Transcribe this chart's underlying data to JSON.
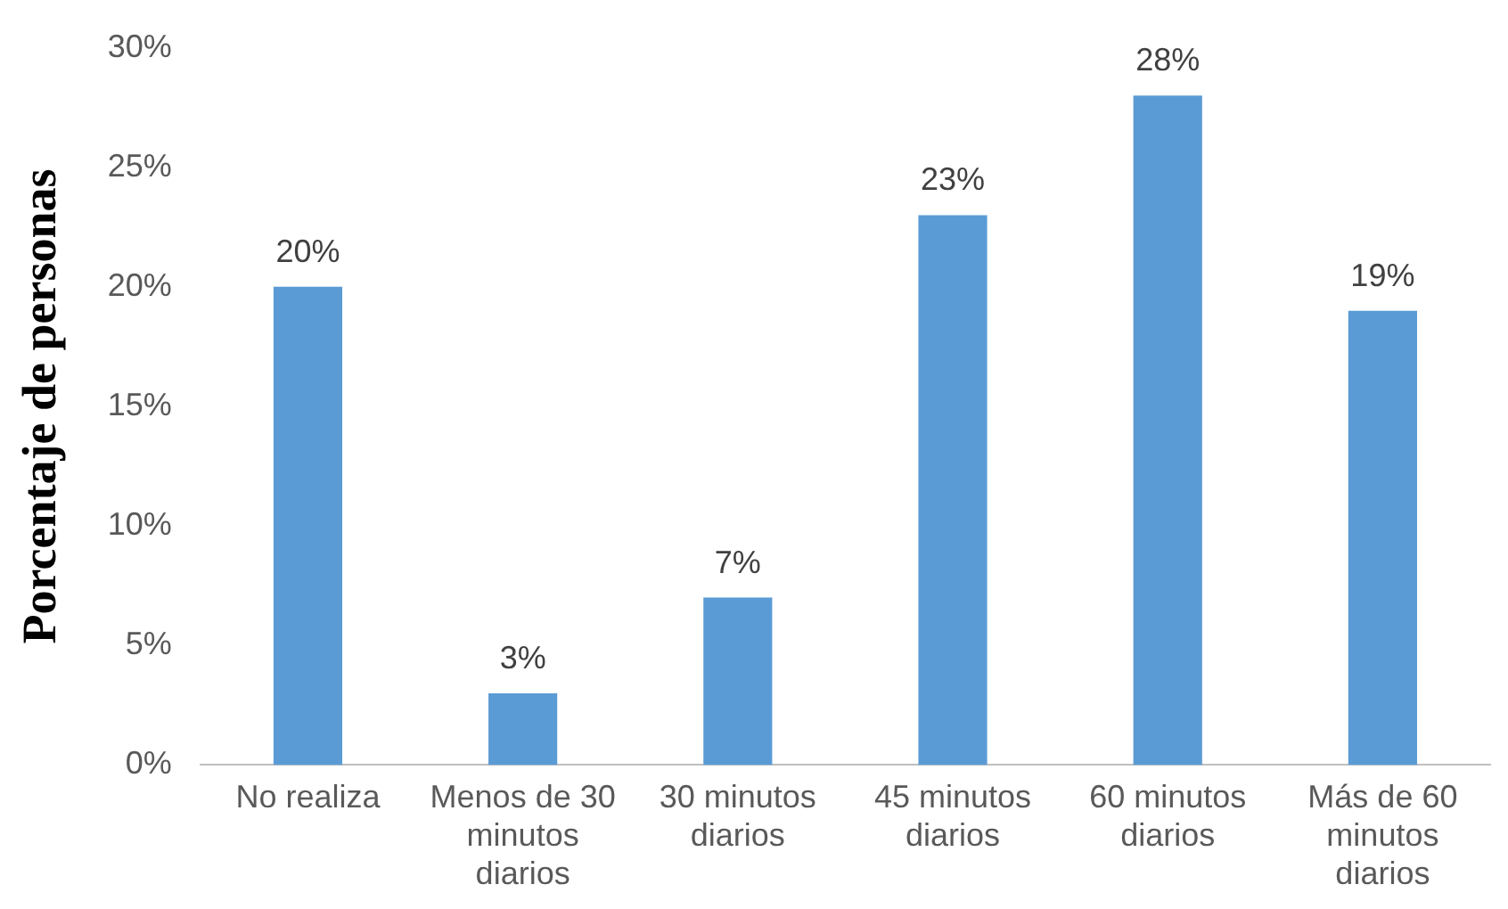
{
  "chart_data": {
    "type": "bar",
    "ylabel": "Porcentaje de personas",
    "categories": [
      "No realiza",
      "Menos de 30 minutos diarios",
      "30 minutos diarios",
      "45 minutos diarios",
      "60 minutos diarios",
      "Más de 60 minutos diarios"
    ],
    "values": [
      20,
      3,
      7,
      23,
      28,
      19
    ],
    "color": "#5b9bd5",
    "value_labels": [
      "20%",
      "3%",
      "7%",
      "23%",
      "28%",
      "19%"
    ],
    "ylim": [
      0,
      30
    ],
    "yticks": [
      {
        "value": 0,
        "label": "0%"
      },
      {
        "value": 5,
        "label": "5%"
      },
      {
        "value": 10,
        "label": "10%"
      },
      {
        "value": 15,
        "label": "15%"
      },
      {
        "value": 20,
        "label": "20%"
      },
      {
        "value": 25,
        "label": "25%"
      },
      {
        "value": 30,
        "label": "30%"
      }
    ],
    "grid": false,
    "legend": false
  }
}
